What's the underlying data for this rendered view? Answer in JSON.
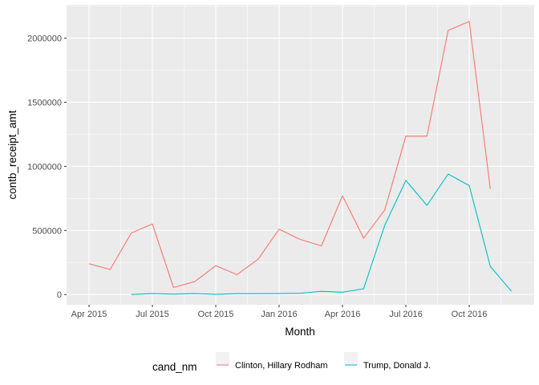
{
  "chart_data": {
    "type": "line",
    "xlabel": "Month",
    "ylabel": "contb_receipt_amt",
    "x_ticks": [
      "Apr 2015",
      "Jul 2015",
      "Oct 2015",
      "Jan 2016",
      "Apr 2016",
      "Jul 2016",
      "Oct 2016"
    ],
    "y_ticks": [
      0,
      500000,
      1000000,
      1500000,
      2000000
    ],
    "y_tick_labels": [
      "0",
      "500000",
      "1000000",
      "1500000",
      "2000000"
    ],
    "x_range": [
      "2015-03",
      "2016-12"
    ],
    "ylim": [
      -80000,
      2260000
    ],
    "grid": true,
    "legend": {
      "title": "cand_nm",
      "position": "bottom"
    },
    "series": [
      {
        "name": "Clinton, Hillary Rodham",
        "color": "#F8766D",
        "x": [
          "2015-04",
          "2015-05",
          "2015-06",
          "2015-07",
          "2015-08",
          "2015-09",
          "2015-10",
          "2015-11",
          "2015-12",
          "2016-01",
          "2016-02",
          "2016-03",
          "2016-04",
          "2016-05",
          "2016-06",
          "2016-07",
          "2016-08",
          "2016-09",
          "2016-10",
          "2016-11"
        ],
        "values": [
          240000,
          195000,
          480000,
          550000,
          55000,
          100000,
          225000,
          155000,
          275000,
          510000,
          430000,
          380000,
          770000,
          440000,
          660000,
          1235000,
          1235000,
          2060000,
          2130000,
          825000
        ]
      },
      {
        "name": "Trump, Donald J.",
        "color": "#00BFC4",
        "x": [
          "2015-06",
          "2015-07",
          "2015-08",
          "2015-09",
          "2015-10",
          "2015-11",
          "2015-12",
          "2016-01",
          "2016-02",
          "2016-03",
          "2016-04",
          "2016-05",
          "2016-06",
          "2016-07",
          "2016-08",
          "2016-09",
          "2016-10",
          "2016-11",
          "2016-12"
        ],
        "values": [
          0,
          8000,
          3000,
          8000,
          2000,
          7000,
          7000,
          8000,
          10000,
          25000,
          18000,
          45000,
          540000,
          890000,
          695000,
          940000,
          850000,
          220000,
          25000
        ]
      }
    ]
  }
}
